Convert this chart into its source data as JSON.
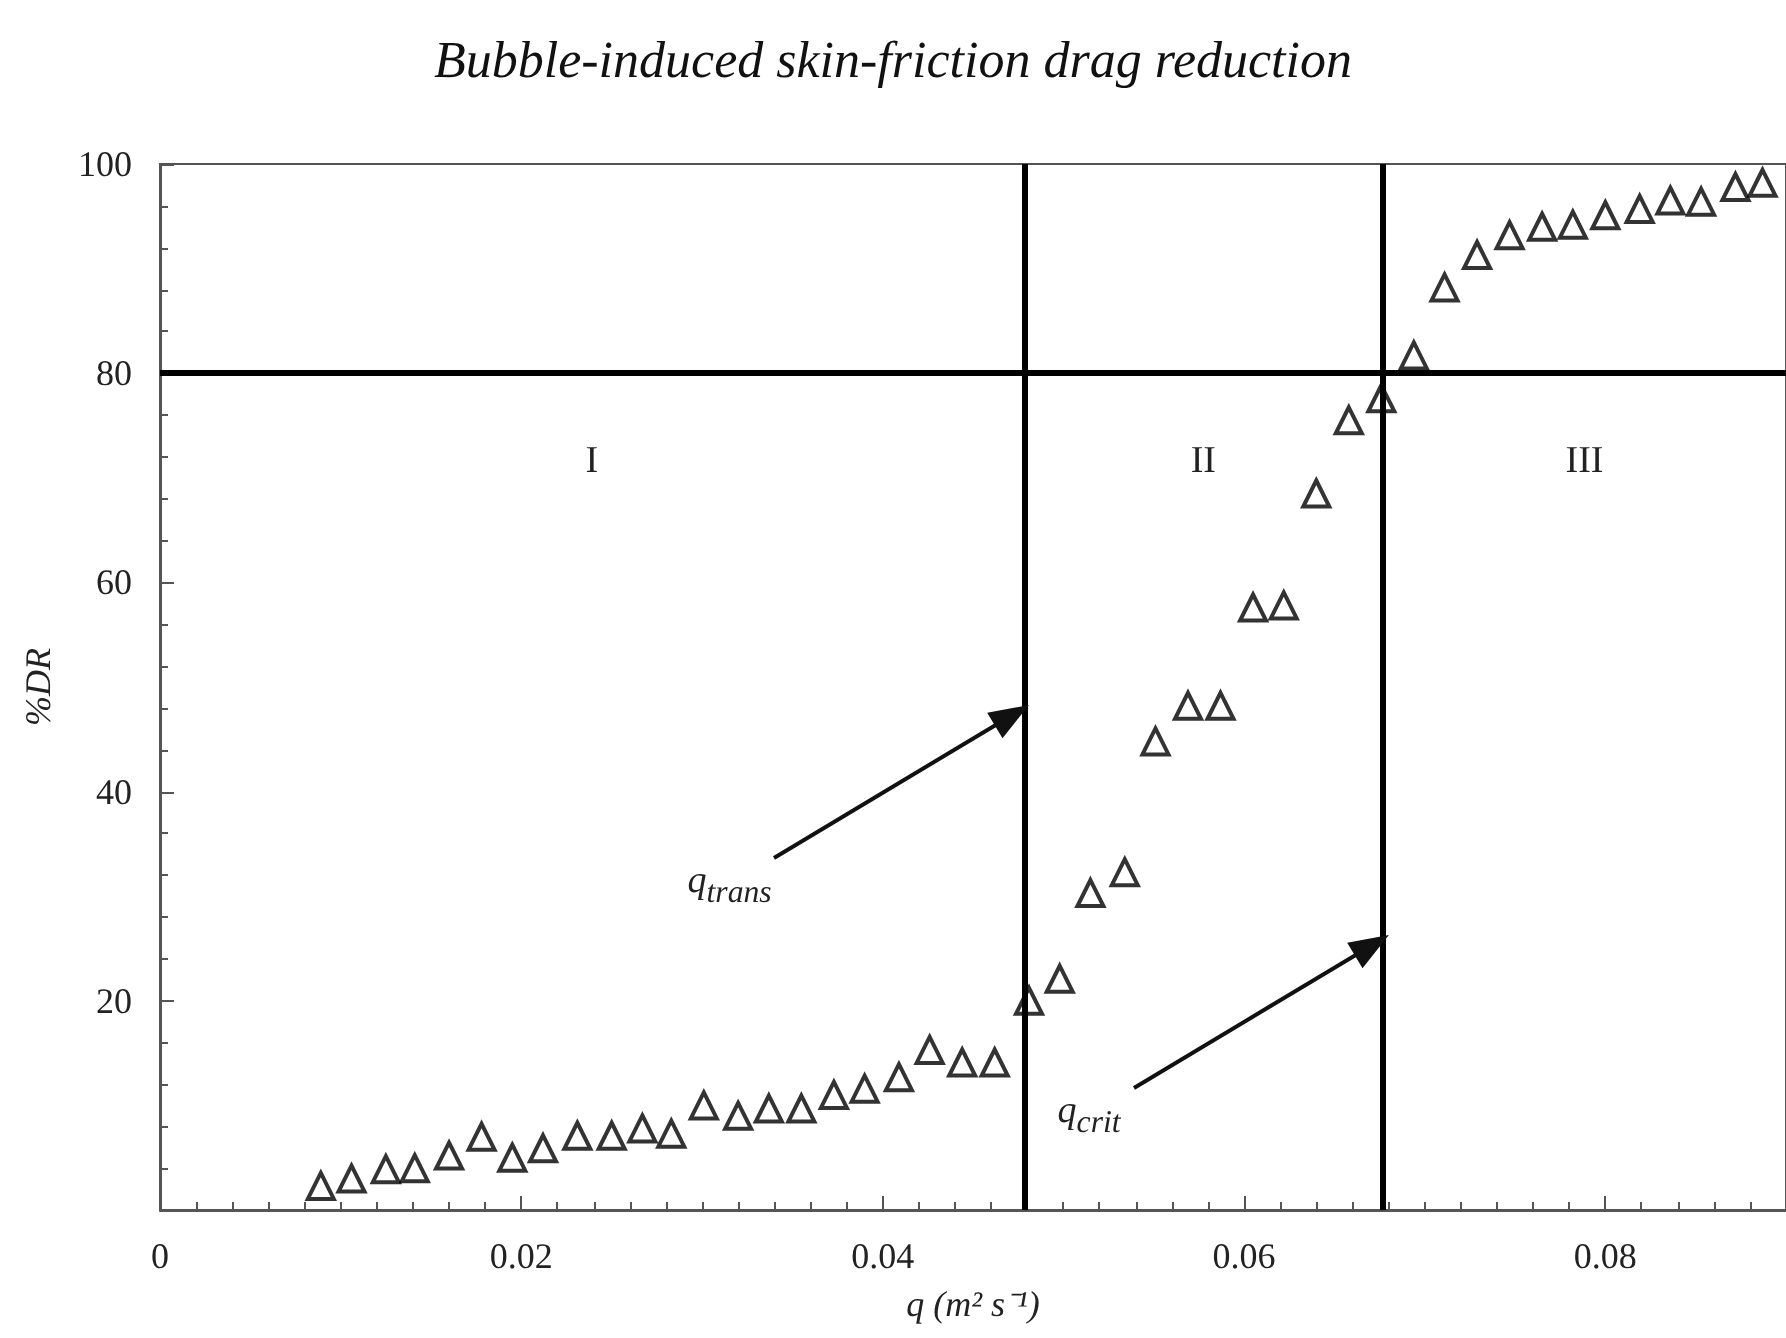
{
  "chart_data": {
    "type": "scatter",
    "title": "Bubble-induced skin-friction drag reduction",
    "xlabel": "q (m² s⁻¹)",
    "ylabel": "%DR",
    "x": [
      0.0089,
      0.0106,
      0.0125,
      0.0141,
      0.016,
      0.0178,
      0.0195,
      0.0212,
      0.0231,
      0.025,
      0.0267,
      0.0283,
      0.0301,
      0.032,
      0.0337,
      0.0355,
      0.0373,
      0.039,
      0.0409,
      0.0426,
      0.0444,
      0.0462,
      0.0481,
      0.0498,
      0.0515,
      0.0534,
      0.0551,
      0.0569,
      0.0587,
      0.0605,
      0.0622,
      0.064,
      0.0658,
      0.0676,
      0.0694,
      0.0711,
      0.0729,
      0.0747,
      0.0765,
      0.0782,
      0.08,
      0.0819,
      0.0836,
      0.0853,
      0.0872,
      0.0887
    ],
    "series": [
      {
        "color": "#000000",
        "values": [
          2.3,
          3.0,
          3.9,
          4.0,
          5.2,
          7.0,
          5.0,
          5.9,
          7.1,
          7.1,
          7.8,
          7.3,
          10.0,
          9.0,
          9.7,
          9.7,
          11.0,
          11.6,
          12.7,
          15.3,
          14.1,
          14.1,
          20.0,
          22.1,
          30.3,
          32.3,
          44.8,
          48.2,
          48.2,
          57.6,
          57.8,
          68.5,
          75.5,
          77.6,
          81.7,
          88.2,
          91.3,
          93.2,
          94.0,
          94.2,
          95.1,
          95.7,
          96.5,
          96.4,
          97.8,
          98.2
        ]
      }
    ],
    "marker": "triangle",
    "xlim": [
      0,
      0.09
    ],
    "xticks": [
      0,
      0.02,
      0.04,
      0.06,
      0.08
    ],
    "ylim": [
      0,
      100
    ],
    "yticks": [
      {
        "value": 0,
        "label": null
      },
      20,
      40,
      60,
      80,
      100
    ],
    "grid": false,
    "ref_lines": [
      {
        "axis": "x",
        "value": 0.0478,
        "color": "#000000"
      },
      {
        "axis": "x",
        "value": 0.0677,
        "color": "#000000"
      },
      {
        "axis": "y",
        "value": 80,
        "color": "#000000"
      }
    ],
    "annotations": [
      "I",
      "II",
      "III",
      "q$_{trans}$",
      "q$_{crit}$"
    ]
  }
}
